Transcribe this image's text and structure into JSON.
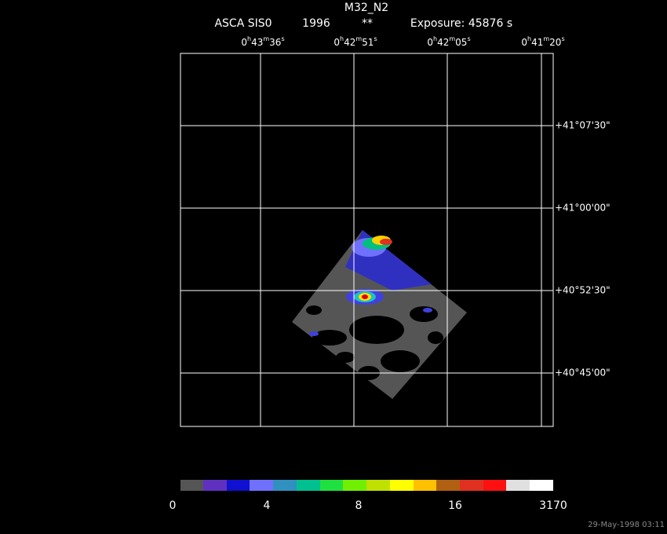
{
  "header": {
    "title": "M32_N2",
    "instrument": "ASCA SIS0",
    "year": "1996",
    "flag": "**",
    "exposure": "Exposure: 45876 s"
  },
  "ra_labels": [
    {
      "hours": "0",
      "h": "h",
      "min": "43",
      "m": "m",
      "sec": "36",
      "s": "s"
    },
    {
      "hours": "0",
      "h": "h",
      "min": "42",
      "m": "m",
      "sec": "51",
      "s": "s"
    },
    {
      "hours": "0",
      "h": "h",
      "min": "42",
      "m": "m",
      "sec": "05",
      "s": "s"
    },
    {
      "hours": "0",
      "h": "h",
      "min": "41",
      "m": "m",
      "sec": "20",
      "s": "s"
    }
  ],
  "dec_labels": [
    "+41°07'30\"",
    "+41°00'00\"",
    "+40°52'30\"",
    "+40°45'00\""
  ],
  "colorbar_labels": [
    "0",
    "4",
    "8",
    "16",
    "3170"
  ],
  "timestamp": "29-May-1998 03:11"
}
